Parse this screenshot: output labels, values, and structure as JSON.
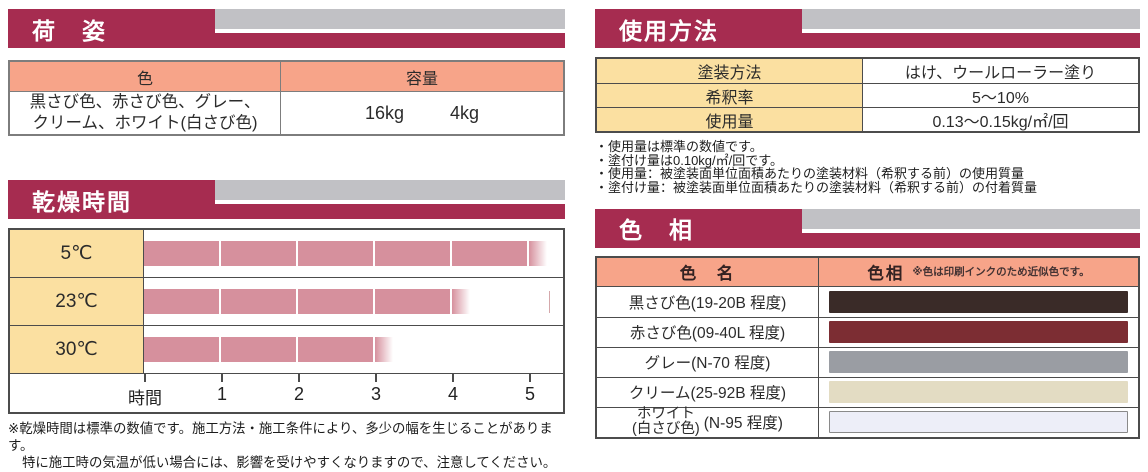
{
  "accent": {
    "crimson": "#A62C50",
    "gray_band": "#C1C1C5",
    "salmon_header": "#F7A489",
    "yellow_cell": "#FBE0A1",
    "bar_pink": "#D6909D"
  },
  "packaging": {
    "title": "荷　姿",
    "col_color": "色",
    "col_capacity": "容量",
    "colors_line1": "黒さび色、赤さび色、グレー、",
    "colors_line2": "クリーム、ホワイト(白さび色)",
    "capacities": [
      "16kg",
      "4kg"
    ]
  },
  "drying": {
    "title": "乾燥時間",
    "footnote_line1": "※乾燥時間は標準の数値です。施工方法・施工条件により、多少の幅を生じることがあります。",
    "footnote_line2": "特に施工時の気温が低い場合には、影響を受けやすくなりますので、注意してください。"
  },
  "chart_data": {
    "type": "bar",
    "orientation": "horizontal",
    "title": "乾燥時間",
    "categories": [
      "5℃",
      "23℃",
      "30℃"
    ],
    "values": [
      5,
      4,
      3
    ],
    "fade_extension_hours": 0.23,
    "segment_hours": 1,
    "xlabel": "時間",
    "x_ticks": [
      1,
      2,
      3,
      4,
      5
    ],
    "xlim": [
      0,
      5.45
    ],
    "bar_color": "#D6909D",
    "grid": false,
    "legend": "none"
  },
  "usage": {
    "title": "使用方法",
    "rows": [
      {
        "label": "塗装方法",
        "value": "はけ、ウールローラー塗り"
      },
      {
        "label": "希釈率",
        "value": "5〜10%"
      },
      {
        "label": "使用量",
        "value": "0.13〜0.15kg/㎡/回"
      }
    ],
    "notes": [
      "・使用量は標準の数値です。",
      "・塗付け量は0.10kg/㎡/回です。",
      "・使用量：被塗装面単位面積あたりの塗装材料（希釈する前）の使用質量",
      "・塗付け量：被塗装面単位面積あたりの塗装材料（希釈する前）の付着質量"
    ]
  },
  "hue": {
    "title": "色　相",
    "col_name": "色　名",
    "col_hue": "色相",
    "col_hue_note": "※色は印刷インクのため近似色です。",
    "rows": [
      {
        "name": "黒さび色(19-20B 程度)",
        "swatch": "#3A2B28",
        "bordered": false
      },
      {
        "name": "赤さび色(09-40L 程度)",
        "swatch": "#7C2D33",
        "bordered": false
      },
      {
        "name": "グレー(N-70 程度)",
        "swatch": "#9A9DA3",
        "bordered": false
      },
      {
        "name": "クリーム(25-92B 程度)",
        "swatch": "#E3DCC3",
        "bordered": false
      },
      {
        "name_line1": "ホワイト",
        "name_line2": "(白さび色)",
        "name_suffix": "(N-95 程度)",
        "swatch": "#EDEEF8",
        "bordered": true
      }
    ]
  }
}
